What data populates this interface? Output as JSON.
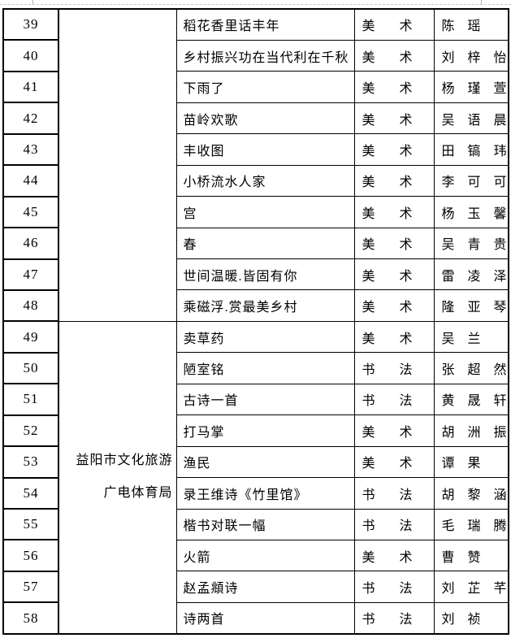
{
  "page": {
    "background_color": "#ffffff",
    "margin_guide_color": "#c9c9c9"
  },
  "table": {
    "border_color": "#000000",
    "org_groups": [
      {
        "start_index": 0,
        "row_span": 10,
        "lines": [
          "",
          ""
        ]
      },
      {
        "start_index": 10,
        "row_span": 10,
        "lines": [
          "益阳市文化旅游",
          "广电体育局"
        ]
      }
    ],
    "rows": [
      {
        "no": "39",
        "title": "稻花香里话丰年",
        "category": "美术",
        "author": "陈瑶"
      },
      {
        "no": "40",
        "title": "乡村振兴功在当代利在千秋",
        "category": "美术",
        "author": "刘梓怡"
      },
      {
        "no": "41",
        "title": "下雨了",
        "category": "美术",
        "author": "杨瑾萱"
      },
      {
        "no": "42",
        "title": "苗岭欢歌",
        "category": "美术",
        "author": "吴语晨"
      },
      {
        "no": "43",
        "title": "丰收图",
        "category": "美术",
        "author": "田镐玮"
      },
      {
        "no": "44",
        "title": "小桥流水人家",
        "category": "美术",
        "author": "李可可"
      },
      {
        "no": "45",
        "title": "宫",
        "category": "美术",
        "author": "杨玉馨"
      },
      {
        "no": "46",
        "title": "春",
        "category": "美术",
        "author": "吴青贵"
      },
      {
        "no": "47",
        "title": "世间温暖.皆固有你",
        "category": "美术",
        "author": "雷凌泽"
      },
      {
        "no": "48",
        "title": "乘磁浮.赏最美乡村",
        "category": "美术",
        "author": "隆亚琴"
      },
      {
        "no": "49",
        "title": "卖草药",
        "category": "美术",
        "author": "吴兰"
      },
      {
        "no": "50",
        "title": "陋室铭",
        "category": "书法",
        "author": "张超然"
      },
      {
        "no": "51",
        "title": "古诗一首",
        "category": "书法",
        "author": "黄晟轩"
      },
      {
        "no": "52",
        "title": "打马掌",
        "category": "美术",
        "author": "胡洲振"
      },
      {
        "no": "53",
        "title": "渔民",
        "category": "美术",
        "author": "谭果"
      },
      {
        "no": "54",
        "title": "录王维诗《竹里馆》",
        "category": "书法",
        "author": "胡黎涵"
      },
      {
        "no": "55",
        "title": "楷书对联一幅",
        "category": "书法",
        "author": "毛瑞腾"
      },
      {
        "no": "56",
        "title": "火箭",
        "category": "美术",
        "author": "曹赞"
      },
      {
        "no": "57",
        "title": "赵孟頫诗",
        "category": "书法",
        "author": "刘芷芊"
      },
      {
        "no": "58",
        "title": "诗两首",
        "category": "书法",
        "author": "刘祯"
      }
    ]
  }
}
